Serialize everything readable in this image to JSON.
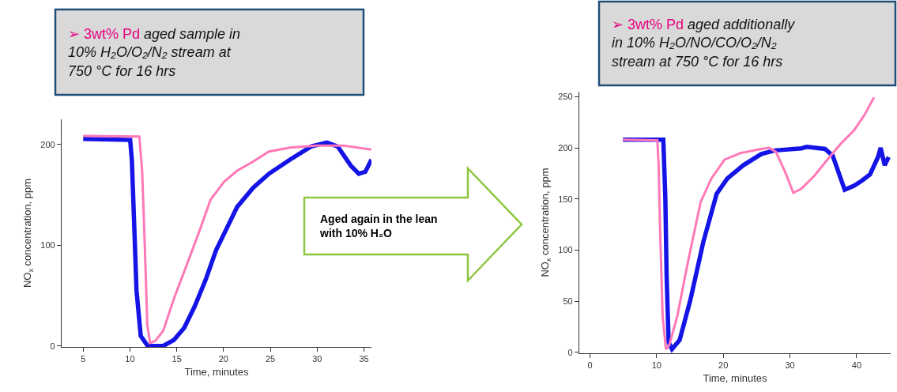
{
  "chart_data": [
    {
      "type": "line",
      "xlabel": "Time, minutes",
      "ylabel": "NO$_{x}$ concentration, ppm",
      "xlim": [
        2.7,
        35.8
      ],
      "xticks": [
        5,
        10,
        15,
        20,
        25,
        30,
        35
      ],
      "ylim": [
        -1,
        225
      ],
      "yticks": [
        0,
        100,
        200
      ],
      "annotations": [
        "➢ 3wt% Pd",
        "aged sample in 10% H₂O/O₂/N₂ stream at 750 °C for 16 hrs",
        "Aged again in the lean with 10% H₂O"
      ],
      "series": [
        {
          "color": "#1414e6",
          "x": [
            5,
            10.02,
            10.2,
            10.45,
            10.7,
            11.15,
            11.9,
            13.55,
            14.7,
            15.8,
            16.9,
            18.1,
            19.2,
            20.3,
            21.45,
            23.15,
            24.85,
            27.1,
            29.35,
            31.05,
            32.2,
            33.6,
            34.45,
            35.15,
            35.8
          ],
          "values": [
            205.5,
            204.5,
            185,
            121,
            55,
            10,
            0,
            0,
            6,
            18,
            39,
            66,
            95,
            116,
            138,
            157,
            171,
            185,
            198,
            202,
            198,
            179,
            171,
            173,
            185
          ]
        },
        {
          "color": "#ff78b8",
          "x": [
            5,
            11.0,
            11.3,
            11.6,
            11.85,
            12.15,
            12.7,
            13.55,
            14.7,
            15.8,
            17.5,
            18.6,
            20.05,
            21.45,
            23.15,
            24.85,
            27.1,
            29.9,
            32.75,
            35.8
          ],
          "values": [
            208.5,
            208,
            174,
            95,
            21,
            3,
            5,
            15,
            47,
            74,
            116,
            145,
            163,
            174,
            183,
            193,
            197,
            199,
            199,
            195
          ]
        }
      ]
    },
    {
      "type": "line",
      "xlabel": "Time, minutes",
      "ylabel": "NO$_{x}$ concentration, ppm",
      "xlim": [
        -1.6,
        45.1
      ],
      "xticks": [
        0,
        10,
        20,
        30,
        40
      ],
      "ylim": [
        -1,
        255
      ],
      "yticks": [
        0,
        50,
        100,
        150,
        200,
        250
      ],
      "annotations": [
        "➢ 3wt% Pd",
        "aged additionally in 10% H₂O/NO/CO/O₂/N₂ stream at 750 °C for 16 hrs"
      ],
      "series": [
        {
          "color": "#1414e6",
          "x": [
            4.95,
            11.0,
            11.3,
            11.5,
            11.8,
            12.3,
            13.45,
            15.05,
            17.0,
            19.0,
            20.6,
            23.0,
            25.7,
            27.7,
            31.7,
            32.5,
            35.25,
            36.4,
            38.2,
            39.6,
            40.8,
            42.0,
            43.2,
            43.6,
            44.2,
            44.8
          ],
          "values": [
            208,
            208,
            152,
            74,
            9.6,
            3,
            12,
            51,
            108,
            155,
            170,
            183,
            194,
            197.5,
            199.5,
            201,
            199,
            192.5,
            159,
            163,
            168,
            174,
            191,
            200,
            183,
            191
          ]
        },
        {
          "color": "#ff78b8",
          "x": [
            4.95,
            10.1,
            10.3,
            10.5,
            10.9,
            11.4,
            11.9,
            13.1,
            14.65,
            16.6,
            18.2,
            20.2,
            22.6,
            25.7,
            26.9,
            27.9,
            29.3,
            30.5,
            31.7,
            33.7,
            35.6,
            37.6,
            39.6,
            41.2,
            42.6
          ],
          "values": [
            208,
            207.5,
            183,
            124,
            35.5,
            3,
            7,
            35.5,
            87,
            147,
            170,
            188.5,
            195,
            199,
            200,
            196,
            176,
            156,
            160,
            173,
            188.5,
            204,
            217,
            232.5,
            249.5
          ]
        }
      ]
    }
  ]
}
